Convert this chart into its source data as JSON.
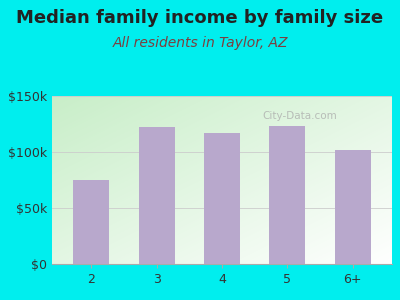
{
  "title": "Median family income by family size",
  "subtitle": "All residents in Taylor, AZ",
  "categories": [
    "2",
    "3",
    "4",
    "5",
    "6+"
  ],
  "values": [
    75000,
    122000,
    117000,
    123000,
    102000
  ],
  "bar_color": "#b8a8cc",
  "background_color": "#00eeee",
  "ylim": [
    0,
    150000
  ],
  "yticks": [
    0,
    50000,
    100000,
    150000
  ],
  "ytick_labels": [
    "$0",
    "$50k",
    "$100k",
    "$150k"
  ],
  "title_fontsize": 13,
  "subtitle_fontsize": 10,
  "tick_fontsize": 9,
  "title_color": "#222222",
  "subtitle_color": "#7a4040",
  "watermark": "City-Data.com",
  "watermark_color": "#aaaaaa"
}
